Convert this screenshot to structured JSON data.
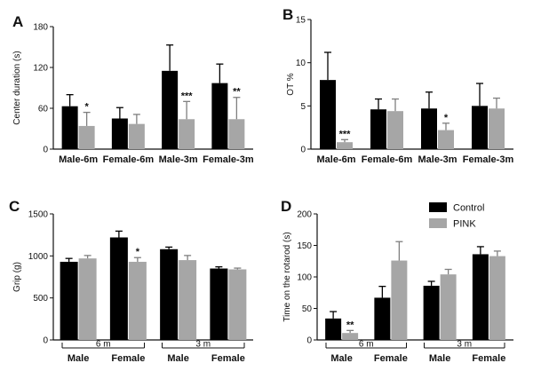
{
  "legend": {
    "entries": [
      {
        "name": "Control",
        "color": "#000000"
      },
      {
        "name": "PINK",
        "color": "#a6a6a6"
      }
    ],
    "placement": "top-right of panel D"
  },
  "chart_data": [
    {
      "panel": "A",
      "type": "bar",
      "title": "",
      "xlabel": "",
      "ylabel": "Center duration (s)",
      "ylim": [
        0,
        180
      ],
      "yticks": [
        0,
        60,
        120,
        180
      ],
      "categories": [
        "Male-6m",
        "Female-6m",
        "Male-3m",
        "Female-3m"
      ],
      "series": [
        {
          "name": "Control",
          "values": [
            63,
            45,
            115,
            97
          ],
          "errors": [
            17,
            16,
            38,
            28
          ]
        },
        {
          "name": "PINK",
          "values": [
            34,
            37,
            44,
            44
          ],
          "errors": [
            20,
            14,
            26,
            32
          ]
        }
      ],
      "annotations": [
        {
          "category": "Male-6m",
          "series": "PINK",
          "text": "*"
        },
        {
          "category": "Male-3m",
          "series": "PINK",
          "text": "***"
        },
        {
          "category": "Female-3m",
          "series": "PINK",
          "text": "**"
        }
      ],
      "grid": false
    },
    {
      "panel": "B",
      "type": "bar",
      "title": "",
      "xlabel": "",
      "ylabel": "OT %",
      "ylim": [
        0,
        15
      ],
      "yticks": [
        0,
        5,
        10,
        15
      ],
      "categories": [
        "Male-6m",
        "Female-6m",
        "Male-3m",
        "Female-3m"
      ],
      "series": [
        {
          "name": "Control",
          "values": [
            8.0,
            4.6,
            4.7,
            5.0
          ],
          "errors": [
            3.2,
            1.2,
            1.9,
            2.6
          ]
        },
        {
          "name": "PINK",
          "values": [
            0.8,
            4.4,
            2.2,
            4.7
          ],
          "errors": [
            0.3,
            1.4,
            0.8,
            1.2
          ]
        }
      ],
      "annotations": [
        {
          "category": "Male-6m",
          "series": "PINK",
          "text": "***"
        },
        {
          "category": "Male-3m",
          "series": "PINK",
          "text": "*"
        }
      ],
      "grid": false
    },
    {
      "panel": "C",
      "type": "bar",
      "title": "",
      "xlabel": "",
      "ylabel": "Grip (g)",
      "ylim": [
        0,
        1500
      ],
      "yticks": [
        0,
        500,
        1000,
        1500
      ],
      "categories": [
        "Male",
        "Female",
        "Male",
        "Female"
      ],
      "group_labels": [
        "6 m",
        "3 m"
      ],
      "series": [
        {
          "name": "Control",
          "values": [
            930,
            1220,
            1080,
            850
          ],
          "errors": [
            40,
            75,
            25,
            20
          ]
        },
        {
          "name": "PINK",
          "values": [
            970,
            930,
            950,
            840
          ],
          "errors": [
            35,
            50,
            55,
            15
          ]
        }
      ],
      "annotations": [
        {
          "category": "Female (6 m)",
          "series": "PINK",
          "text": "*"
        }
      ],
      "grid": false
    },
    {
      "panel": "D",
      "type": "bar",
      "title": "",
      "xlabel": "",
      "ylabel": "Time on the rotarod (s)",
      "ylim": [
        0,
        200
      ],
      "yticks": [
        0,
        50,
        100,
        150,
        200
      ],
      "categories": [
        "Male",
        "Female",
        "Male",
        "Female"
      ],
      "group_labels": [
        "6 m",
        "3 m"
      ],
      "series": [
        {
          "name": "Control",
          "values": [
            34,
            67,
            86,
            136
          ],
          "errors": [
            11,
            18,
            7,
            12
          ]
        },
        {
          "name": "PINK",
          "values": [
            11,
            126,
            104,
            133
          ],
          "errors": [
            4,
            30,
            8,
            8
          ]
        }
      ],
      "annotations": [
        {
          "category": "Male (6 m)",
          "series": "PINK",
          "text": "**"
        }
      ],
      "grid": false
    }
  ]
}
